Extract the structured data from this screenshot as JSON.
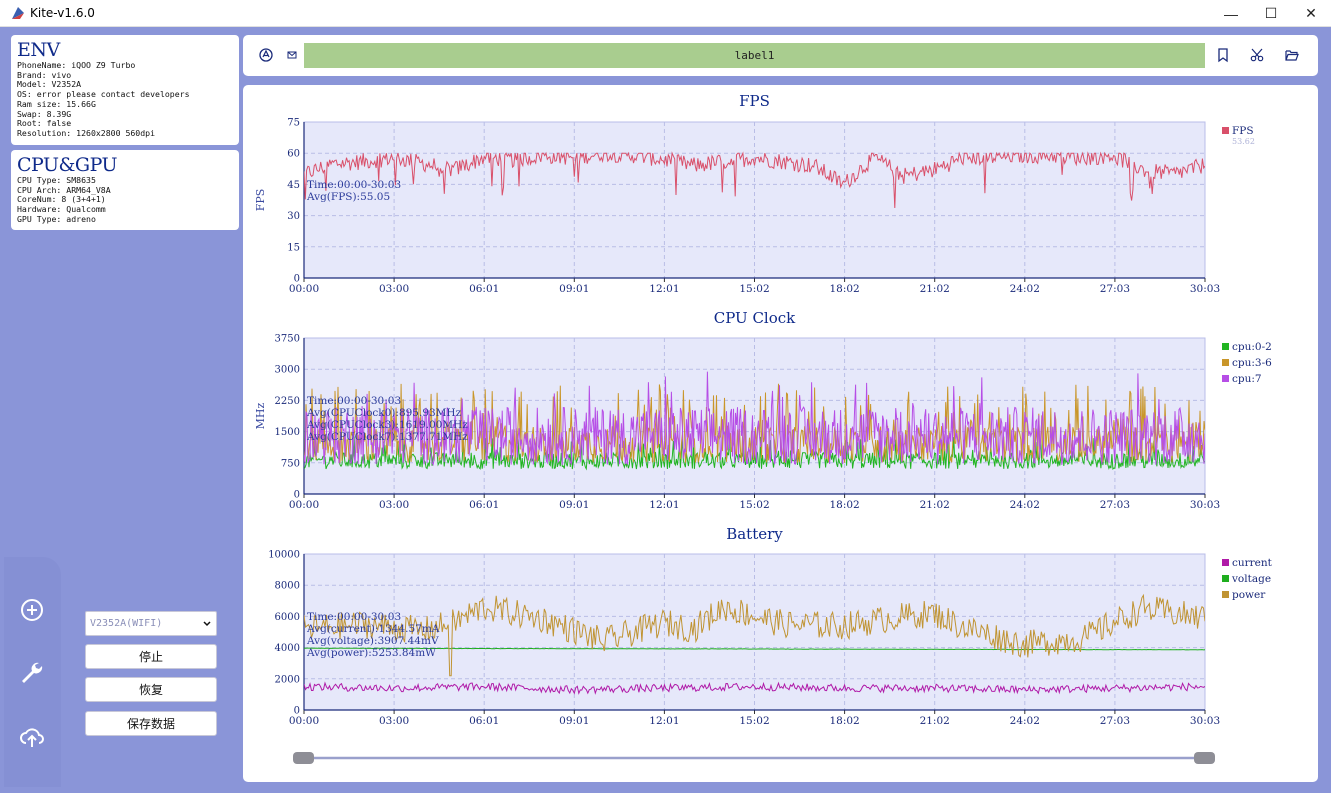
{
  "window": {
    "title": "Kite-v1.6.0",
    "minimize_glyph": "—",
    "maximize_glyph": "☐",
    "close_glyph": "✕"
  },
  "env": {
    "title": "ENV",
    "lines": [
      "PhoneName: iQOO Z9 Turbo",
      "Brand: vivo",
      "Model: V2352A",
      "OS: error please contact developers",
      "Ram size: 15.66G",
      "Swap: 8.39G",
      "Root: false",
      "Resolution: 1260x2800 560dpi"
    ]
  },
  "cpugpu": {
    "title": "CPU&GPU",
    "lines": [
      "CPU Type: SM8635",
      "CPU Arch: ARM64_V8A",
      "CoreNum: 8 (3+4+1)",
      "Hardware: Qualcomm",
      "GPU Type: adreno"
    ]
  },
  "device_select": {
    "value": "V2352A(WIFI)"
  },
  "buttons": {
    "stop": "停止",
    "resume": "恢复",
    "save": "保存数据"
  },
  "toolbar": {
    "label": "label1"
  },
  "icons": {
    "rail": [
      "add-circle-icon",
      "wrench-icon",
      "cloud-upload-icon"
    ],
    "toolbar_left": [
      "android-icon",
      "mail-icon"
    ],
    "toolbar_right": [
      "bookmark-icon",
      "scissors-icon",
      "folder-open-icon"
    ]
  },
  "colors": {
    "fps": "#d9506a",
    "cpu0": "#22b522",
    "cpu3": "#c9962a",
    "cpu7": "#b64ee6",
    "current": "#b01aa8",
    "voltage": "#1fae1f",
    "power": "#c09433",
    "plot_bg": "#e6e8fa",
    "title": "#0f2a8a"
  },
  "chart_data": [
    {
      "type": "line",
      "title": "FPS",
      "ylabel": "FPS",
      "ylim": [
        0,
        75
      ],
      "yticks": [
        0,
        15,
        30,
        45,
        60,
        75
      ],
      "xticks": [
        "00:00",
        "03:00",
        "06:01",
        "09:01",
        "12:01",
        "15:02",
        "18:02",
        "21:02",
        "24:02",
        "27:03",
        "30:03"
      ],
      "annotations": [
        "Time:00:00-30:03",
        "Avg(FPS):55.05"
      ],
      "legend_position": "right",
      "series": [
        {
          "name": "FPS",
          "value_label": "53.62",
          "x": [
            0,
            1,
            2,
            3,
            4,
            5,
            6,
            7,
            8,
            9,
            10,
            11,
            12,
            13,
            14,
            15,
            16,
            17,
            18,
            19,
            20,
            21,
            22,
            23,
            24,
            25,
            26,
            27,
            28,
            29,
            30
          ],
          "values": [
            50,
            55,
            56,
            58,
            55,
            52,
            58,
            57,
            59,
            58,
            60,
            59,
            57,
            54,
            56,
            58,
            56,
            54,
            45,
            58,
            49,
            52,
            58,
            58,
            59,
            59,
            58,
            59,
            52,
            50,
            54
          ]
        }
      ]
    },
    {
      "type": "line",
      "title": "CPU Clock",
      "ylabel": "MHz",
      "ylim": [
        0,
        3750
      ],
      "yticks": [
        0,
        750,
        1500,
        2250,
        3000,
        3750
      ],
      "xticks": [
        "00:00",
        "03:00",
        "06:01",
        "09:01",
        "12:01",
        "15:02",
        "18:02",
        "21:02",
        "24:02",
        "27:03",
        "30:03"
      ],
      "annotations": [
        "Time:00:00-30:03",
        "Avg(CPUClock0):895.93MHz",
        "Avg(CPUClock3):1619.00MHz",
        "Avg(CPUClock7):1377.71MHz"
      ],
      "legend_position": "right",
      "series": [
        {
          "name": "cpu:0-2",
          "avg": 895.93,
          "range": [
            600,
            1400
          ]
        },
        {
          "name": "cpu:3-6",
          "avg": 1619.0,
          "range": [
            700,
            2500
          ]
        },
        {
          "name": "cpu:7",
          "avg": 1377.71,
          "range": [
            700,
            3000
          ]
        }
      ]
    },
    {
      "type": "line",
      "title": "Battery",
      "ylim": [
        0,
        10000
      ],
      "yticks": [
        0,
        2000,
        4000,
        6000,
        8000,
        10000
      ],
      "xticks": [
        "00:00",
        "03:00",
        "06:01",
        "09:01",
        "12:01",
        "15:02",
        "18:02",
        "21:02",
        "24:02",
        "27:03",
        "30:03"
      ],
      "annotations": [
        "Time:00:00-30:03",
        "Avg(current):1344.57mA",
        "Avg(voltage):3907.44mV",
        "Avg(power):5253.84mW"
      ],
      "legend_position": "right",
      "series": [
        {
          "name": "current",
          "x": [
            0,
            3,
            6,
            9,
            12,
            15,
            18,
            21,
            24,
            27,
            30
          ],
          "values": [
            1500,
            1400,
            1500,
            1300,
            1400,
            1500,
            1400,
            1400,
            1300,
            1400,
            1500
          ]
        },
        {
          "name": "voltage",
          "x": [
            0,
            3,
            6,
            9,
            12,
            15,
            18,
            21,
            24,
            27,
            30
          ],
          "values": [
            3960,
            3950,
            3940,
            3930,
            3920,
            3910,
            3900,
            3890,
            3880,
            3870,
            3860
          ]
        },
        {
          "name": "power",
          "x": [
            0,
            2,
            4,
            5,
            6,
            8,
            10,
            12,
            13,
            14,
            16,
            18,
            20,
            21,
            22,
            24,
            26,
            27,
            28,
            29,
            30
          ],
          "values": [
            5200,
            5500,
            5100,
            5600,
            6600,
            5800,
            4400,
            5600,
            5200,
            6600,
            5500,
            5400,
            6000,
            6200,
            5300,
            4200,
            4600,
            5600,
            6500,
            6200,
            5900
          ]
        }
      ]
    }
  ]
}
